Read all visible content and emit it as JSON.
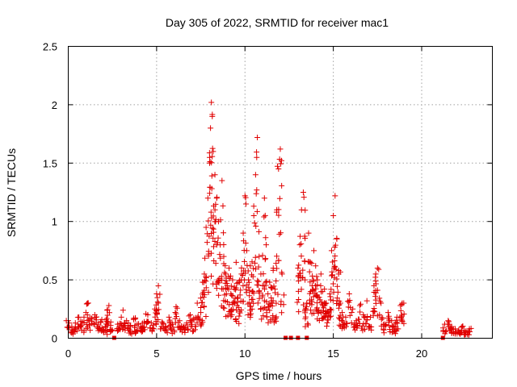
{
  "chart_data": {
    "type": "scatter",
    "title": "Day 305 of 2022, SRMTID for receiver mac1",
    "xlabel": "GPS time / hours",
    "ylabel": "SRMTID / TECUs",
    "xlim": [
      0,
      24
    ],
    "ylim": [
      0,
      2.5
    ],
    "xticks": [
      0,
      5,
      10,
      15,
      20
    ],
    "xtick_labels": [
      "0",
      "5",
      "10",
      "15",
      "20"
    ],
    "yticks": [
      0,
      0.5,
      1,
      1.5,
      2,
      2.5
    ],
    "ytick_labels": [
      "0",
      "0.5",
      "1",
      "1.5",
      "2",
      "2.5"
    ],
    "grid": true,
    "marker": "+",
    "series": [
      {
        "name": "SRMTID",
        "color": "#e00000",
        "points": [
          [
            0.0,
            0.15
          ],
          [
            0.2,
            0.1
          ],
          [
            0.4,
            0.13
          ],
          [
            0.6,
            0.18
          ],
          [
            0.8,
            0.14
          ],
          [
            1.0,
            0.22
          ],
          [
            1.1,
            0.3
          ],
          [
            1.3,
            0.17
          ],
          [
            1.5,
            0.2
          ],
          [
            1.7,
            0.12
          ],
          [
            1.9,
            0.16
          ],
          [
            2.1,
            0.1
          ],
          [
            2.2,
            0.24
          ],
          [
            2.3,
            0.28
          ],
          [
            2.4,
            0.11
          ],
          [
            2.8,
            0.12
          ],
          [
            3.0,
            0.18
          ],
          [
            3.1,
            0.24
          ],
          [
            3.3,
            0.15
          ],
          [
            3.5,
            0.11
          ],
          [
            3.7,
            0.17
          ],
          [
            3.9,
            0.12
          ],
          [
            4.1,
            0.1
          ],
          [
            4.3,
            0.14
          ],
          [
            4.5,
            0.2
          ],
          [
            4.7,
            0.13
          ],
          [
            4.9,
            0.25
          ],
          [
            5.0,
            0.38
          ],
          [
            5.1,
            0.45
          ],
          [
            5.3,
            0.14
          ],
          [
            5.5,
            0.1
          ],
          [
            5.7,
            0.18
          ],
          [
            5.9,
            0.12
          ],
          [
            6.1,
            0.27
          ],
          [
            6.3,
            0.15
          ],
          [
            6.5,
            0.1
          ],
          [
            6.7,
            0.13
          ],
          [
            6.9,
            0.2
          ],
          [
            7.1,
            0.17
          ],
          [
            7.3,
            0.3
          ],
          [
            7.5,
            0.22
          ],
          [
            7.6,
            0.48
          ],
          [
            7.7,
            0.55
          ],
          [
            7.8,
            0.95
          ],
          [
            7.9,
            1.2
          ],
          [
            8.0,
            1.5
          ],
          [
            8.05,
            1.8
          ],
          [
            8.1,
            2.02
          ],
          [
            8.15,
            1.9
          ],
          [
            8.2,
            1.6
          ],
          [
            8.3,
            1.4
          ],
          [
            8.4,
            1.2
          ],
          [
            8.5,
            1.0
          ],
          [
            8.6,
            0.8
          ],
          [
            8.7,
            1.35
          ],
          [
            8.8,
            0.7
          ],
          [
            8.9,
            0.55
          ],
          [
            9.0,
            0.45
          ],
          [
            9.1,
            0.6
          ],
          [
            9.2,
            0.38
          ],
          [
            9.3,
            0.5
          ],
          [
            9.4,
            0.42
          ],
          [
            9.5,
            0.65
          ],
          [
            9.6,
            0.35
          ],
          [
            9.7,
            0.48
          ],
          [
            9.8,
            0.55
          ],
          [
            9.9,
            0.9
          ],
          [
            10.0,
            1.22
          ],
          [
            10.1,
            0.75
          ],
          [
            10.2,
            0.5
          ],
          [
            10.3,
            0.62
          ],
          [
            10.4,
            0.4
          ],
          [
            10.5,
            1.05
          ],
          [
            10.6,
            1.4
          ],
          [
            10.7,
            1.72
          ],
          [
            10.8,
            0.7
          ],
          [
            10.9,
            0.55
          ],
          [
            11.0,
            0.45
          ],
          [
            11.1,
            1.2
          ],
          [
            11.2,
            0.8
          ],
          [
            11.3,
            0.38
          ],
          [
            11.4,
            0.48
          ],
          [
            11.5,
            0.32
          ],
          [
            11.6,
            0.6
          ],
          [
            11.7,
            0.42
          ],
          [
            11.8,
            1.1
          ],
          [
            11.9,
            1.45
          ],
          [
            12.0,
            1.62
          ],
          [
            12.1,
            0.55
          ],
          [
            13.0,
            0.6
          ],
          [
            13.1,
            0.8
          ],
          [
            13.2,
            1.1
          ],
          [
            13.3,
            1.25
          ],
          [
            13.4,
            0.5
          ],
          [
            13.5,
            0.3
          ],
          [
            13.6,
            0.9
          ],
          [
            13.7,
            0.65
          ],
          [
            13.8,
            0.45
          ],
          [
            13.9,
            0.75
          ],
          [
            14.0,
            0.62
          ],
          [
            14.1,
            0.5
          ],
          [
            14.2,
            0.35
          ],
          [
            14.3,
            0.55
          ],
          [
            14.4,
            0.28
          ],
          [
            14.5,
            0.42
          ],
          [
            14.6,
            0.3
          ],
          [
            14.7,
            0.22
          ],
          [
            14.8,
            0.38
          ],
          [
            14.9,
            0.75
          ],
          [
            15.0,
            1.05
          ],
          [
            15.1,
            1.22
          ],
          [
            15.2,
            0.85
          ],
          [
            15.3,
            0.55
          ],
          [
            15.4,
            0.3
          ],
          [
            15.5,
            0.22
          ],
          [
            15.7,
            0.18
          ],
          [
            15.9,
            0.38
          ],
          [
            16.1,
            0.25
          ],
          [
            16.3,
            0.15
          ],
          [
            16.5,
            0.28
          ],
          [
            16.7,
            0.2
          ],
          [
            16.9,
            0.32
          ],
          [
            17.1,
            0.18
          ],
          [
            17.3,
            0.45
          ],
          [
            17.4,
            0.55
          ],
          [
            17.5,
            0.6
          ],
          [
            17.7,
            0.3
          ],
          [
            17.9,
            0.12
          ],
          [
            18.1,
            0.22
          ],
          [
            18.3,
            0.15
          ],
          [
            18.5,
            0.1
          ],
          [
            18.6,
            0.18
          ],
          [
            18.8,
            0.28
          ],
          [
            18.9,
            0.3
          ],
          [
            21.3,
            0.12
          ],
          [
            21.5,
            0.15
          ],
          [
            21.7,
            0.1
          ],
          [
            21.9,
            0.08
          ],
          [
            22.1,
            0.07
          ],
          [
            22.3,
            0.1
          ],
          [
            22.5,
            0.06
          ],
          [
            22.7,
            0.08
          ]
        ]
      }
    ],
    "zero_markers": [
      2.6,
      12.3,
      12.6,
      13.0,
      13.5,
      21.2
    ]
  }
}
